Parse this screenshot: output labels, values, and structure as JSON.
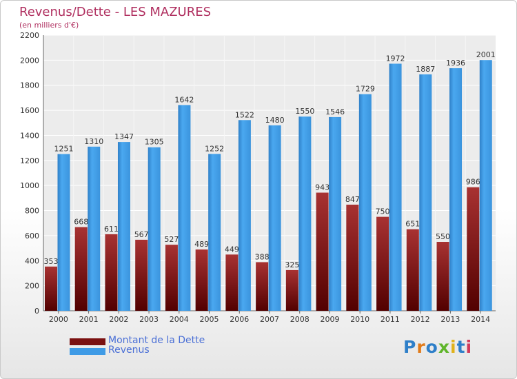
{
  "header": {
    "title": "Revenus/Dette - LES MAZURES",
    "subtitle": "(en milliers d'€)"
  },
  "legend": {
    "items": [
      {
        "label": "Montant de la Dette",
        "color": "#7a1010"
      },
      {
        "label": "Revenus",
        "color": "#3f9be6"
      }
    ]
  },
  "logo": {
    "text": "Proxiti"
  },
  "chart_data": {
    "type": "bar",
    "title": "Revenus/Dette - LES MAZURES",
    "subtitle": "(en milliers d'€)",
    "categories": [
      "2000",
      "2001",
      "2002",
      "2003",
      "2004",
      "2005",
      "2006",
      "2007",
      "2008",
      "2009",
      "2010",
      "2011",
      "2012",
      "2013",
      "2014"
    ],
    "series": [
      {
        "name": "Montant de la Dette",
        "color": "#7a1010",
        "values": [
          353,
          668,
          611,
          567,
          527,
          489,
          449,
          388,
          325,
          943,
          847,
          750,
          651,
          550,
          986
        ]
      },
      {
        "name": "Revenus",
        "color": "#3f9be6",
        "values": [
          1251,
          1310,
          1347,
          1305,
          1642,
          1252,
          1522,
          1480,
          1550,
          1546,
          1729,
          1972,
          1887,
          1936,
          2001
        ]
      }
    ],
    "ylim": [
      0,
      2200
    ],
    "yticks": [
      0,
      200,
      400,
      600,
      800,
      1000,
      1200,
      1400,
      1600,
      1800,
      2000,
      2200
    ],
    "grid": true,
    "legend_position": "bottom-left"
  }
}
